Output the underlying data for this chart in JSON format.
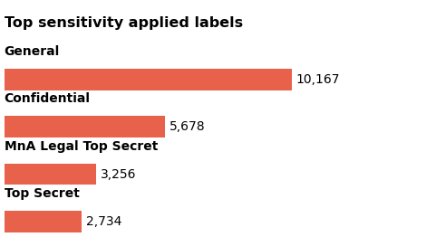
{
  "title": "Top sensitivity applied labels",
  "categories": [
    "General",
    "Confidential",
    "MnA Legal Top Secret",
    "Top Secret"
  ],
  "values": [
    10167,
    5678,
    3256,
    2734
  ],
  "labels": [
    "10,167",
    "5,678",
    "3,256",
    "2,734"
  ],
  "bar_color": "#E8614A",
  "title_fontsize": 11.5,
  "label_fontsize": 10,
  "value_fontsize": 10,
  "background_color": "#ffffff",
  "xlim": [
    0,
    12500
  ]
}
